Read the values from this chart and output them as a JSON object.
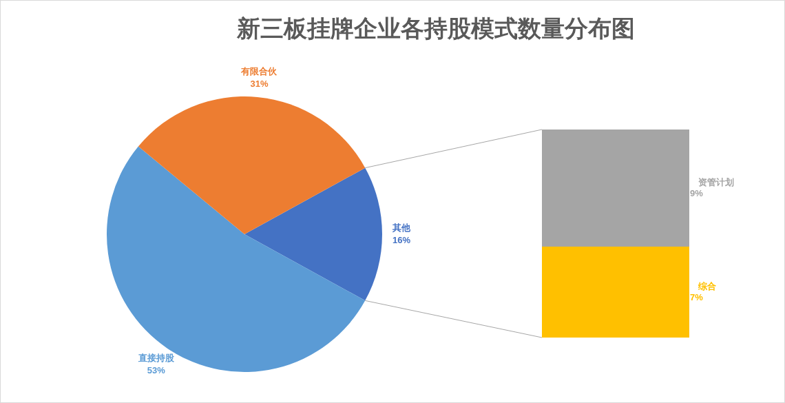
{
  "chart_data": [
    {
      "type": "pie",
      "title": "新三板挂牌企业各持股模式数量分布图",
      "categories": [
        "其他",
        "直接持股",
        "有限合伙"
      ],
      "values": [
        16,
        53,
        31
      ],
      "colors": [
        "#4472c4",
        "#5b9bd5",
        "#ed7d31"
      ],
      "value_labels": [
        "16%",
        "53%",
        "31%"
      ]
    },
    {
      "type": "bar",
      "stacked": true,
      "categories": [
        null
      ],
      "series": [
        {
          "name": "综合",
          "color": "#ffc000",
          "values": [
            7
          ],
          "value_labels": [
            "7%"
          ]
        },
        {
          "name": "资管计划",
          "color": "#a5a5a5",
          "values": [
            9
          ],
          "value_labels": [
            "9%"
          ]
        }
      ]
    }
  ]
}
